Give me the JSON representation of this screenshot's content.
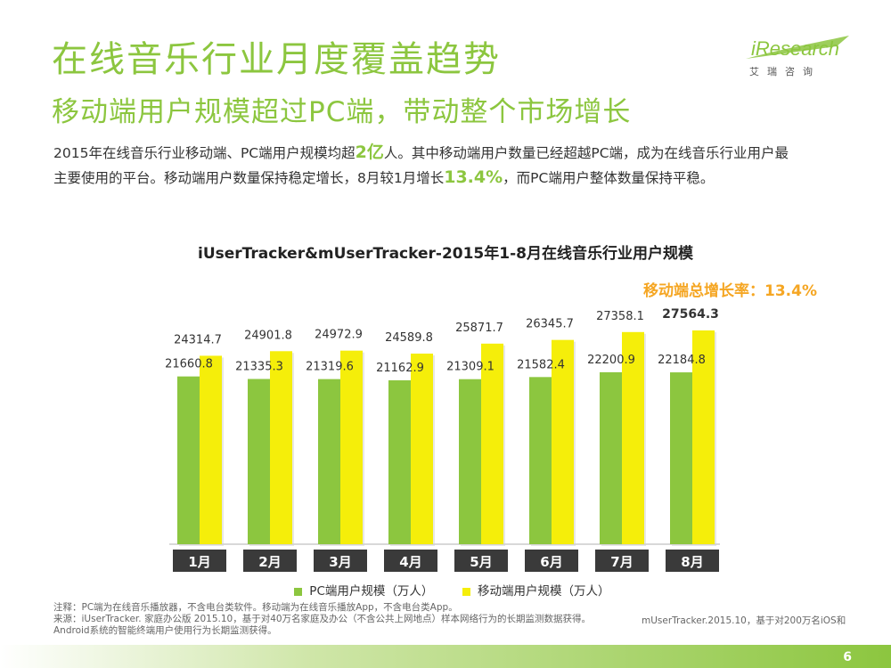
{
  "header": {
    "title": "在线音乐行业月度覆盖趋势",
    "subtitle": "移动端用户规模超过PC端，带动整个市场增长"
  },
  "logo": {
    "brand": "iResearch",
    "chinese": "艾瑞咨询"
  },
  "intro": {
    "line1_a": "2015年在线音乐行业移动端、PC端用户规模均超",
    "line1_highlight": "2亿",
    "line1_b": "人。其中移动端用户数量已经超越PC端，成为在线音乐行业用户最",
    "line2_a": "主要使用的平台。移动端用户数量保持稳定增长，8月较1月增长",
    "line2_highlight": "13.4%",
    "line2_b": "，而PC端用户整体数量保持平稳。"
  },
  "growth_label": "移动端总增长率：13.4%",
  "colors": {
    "accent": "#8cc63f",
    "pc": "#8cc63f",
    "mobile": "#f5ee0a",
    "growth": "#f5a623",
    "month_box": "#3a3a3a"
  },
  "chart_data": {
    "type": "bar",
    "title": "iUserTracker&mUserTracker-2015年1-8月在线音乐行业用户规模",
    "categories": [
      "1月",
      "2月",
      "3月",
      "4月",
      "5月",
      "6月",
      "7月",
      "8月"
    ],
    "series": [
      {
        "name": "PC端用户规模（万人）",
        "values": [
          21660.8,
          21335.3,
          21319.6,
          21162.9,
          21309.1,
          21582.4,
          22200.9,
          22184.8
        ]
      },
      {
        "name": "移动端用户规模（万人）",
        "values": [
          24314.7,
          24901.8,
          24972.9,
          24589.8,
          25871.7,
          26345.7,
          27358.1,
          27564.3
        ]
      }
    ],
    "legend": "bottom",
    "grid": false
  },
  "footnote": {
    "line1": "注释：PC端为在线音乐播放器，不含电台类软件。移动端为在线音乐播放App，不含电台类App。",
    "line2": "来源：iUserTracker. 家庭办公版 2015.10，基于对40万名家庭及办公（不含公共上网地点）样本网络行为的长期监测数据获得。",
    "line3": "Android系统的智能终端用户使用行为长期监测获得。",
    "right": "mUserTracker.2015.10，基于对200万名iOS和"
  },
  "page_number": "6"
}
